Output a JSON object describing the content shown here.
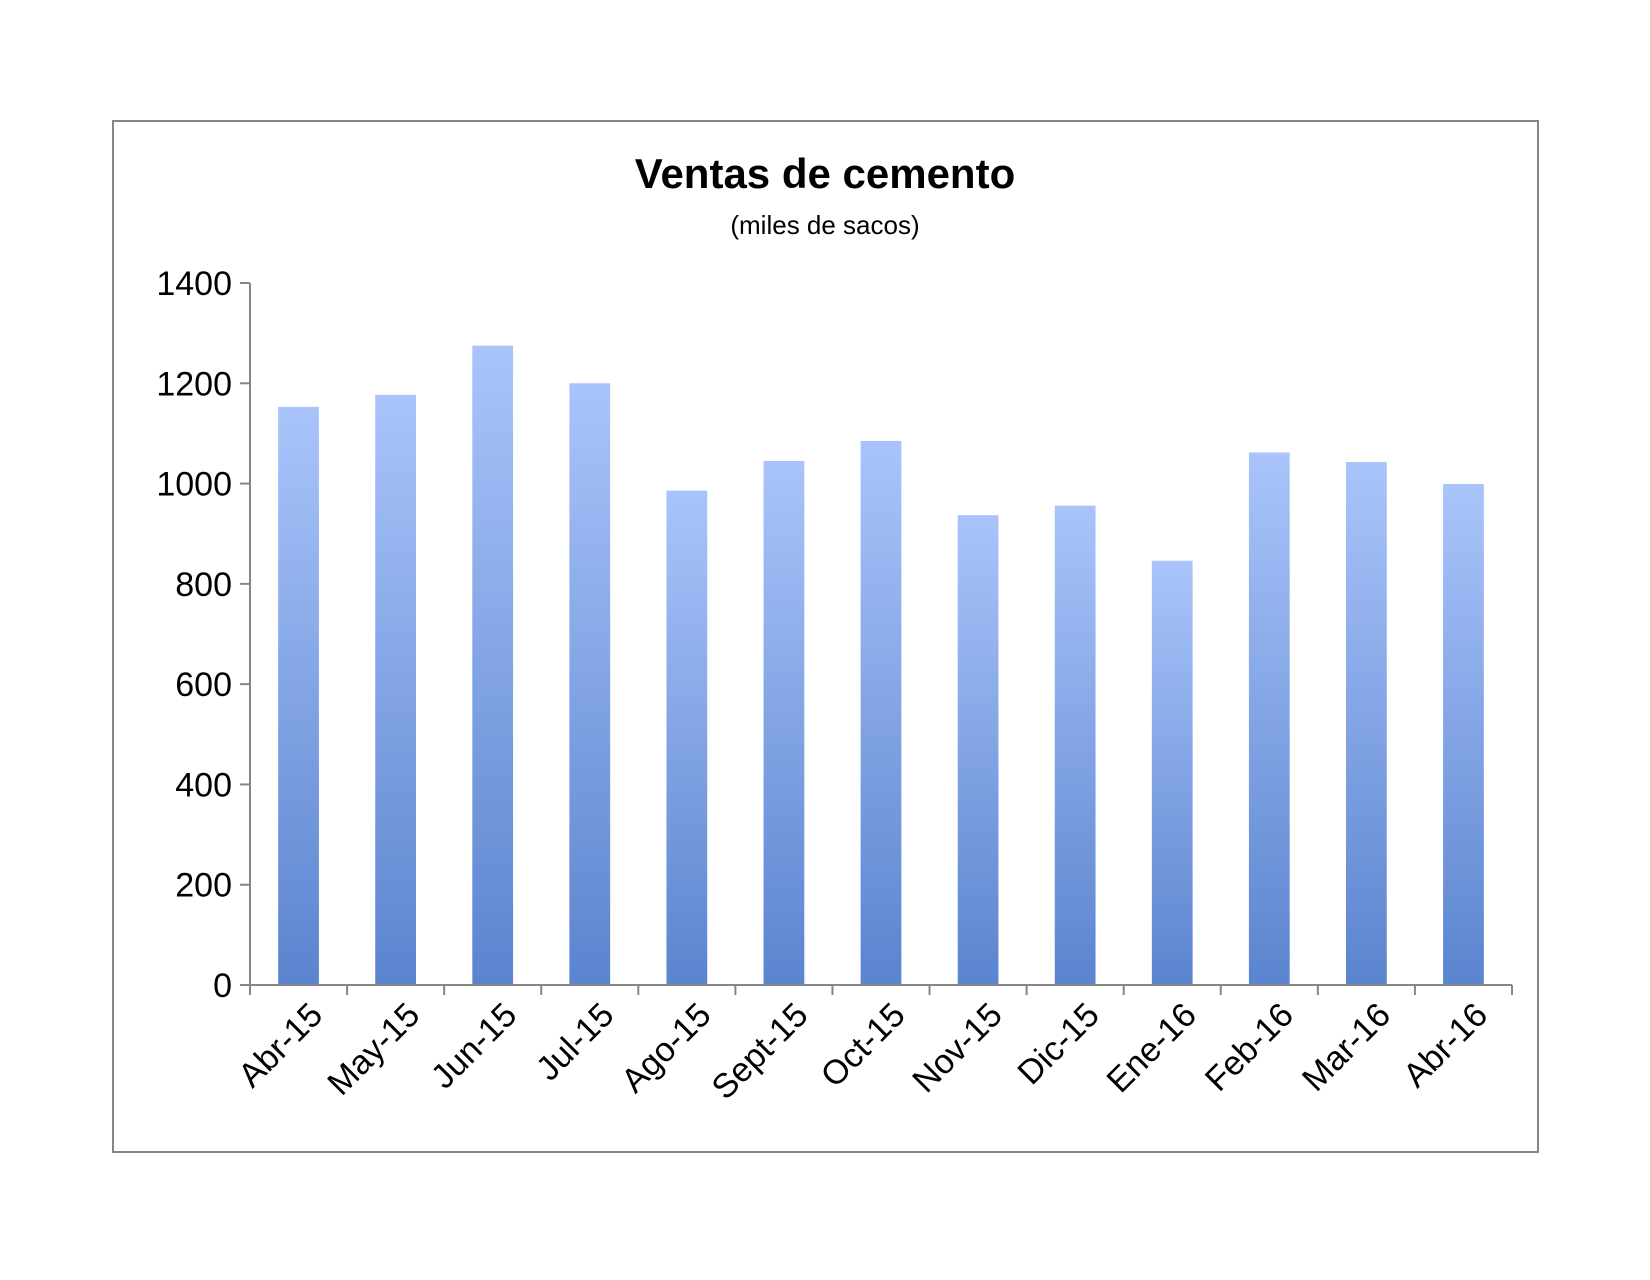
{
  "chart_data": {
    "type": "bar",
    "title": "Ventas de cemento",
    "subtitle": "(miles de sacos)",
    "xlabel": "",
    "ylabel": "",
    "ylim": [
      0,
      1400
    ],
    "yticks": [
      0,
      200,
      400,
      600,
      800,
      1000,
      1200,
      1400
    ],
    "grid": false,
    "legend": "none",
    "categories": [
      "Abr-15",
      "May-15",
      "Jun-15",
      "Jul-15",
      "Ago-15",
      "Sept-15",
      "Oct-15",
      "Nov-15",
      "Dic-15",
      "Ene-16",
      "Feb-16",
      "Mar-16",
      "Abr-16"
    ],
    "values": [
      1153,
      1177,
      1275,
      1200,
      986,
      1045,
      1085,
      937,
      956,
      846,
      1062,
      1043,
      999
    ],
    "colors": {
      "bar_top": "#a9c4fa",
      "bar_bottom": "#5b84cf",
      "axis": "#868686",
      "frame": "#868686"
    }
  }
}
